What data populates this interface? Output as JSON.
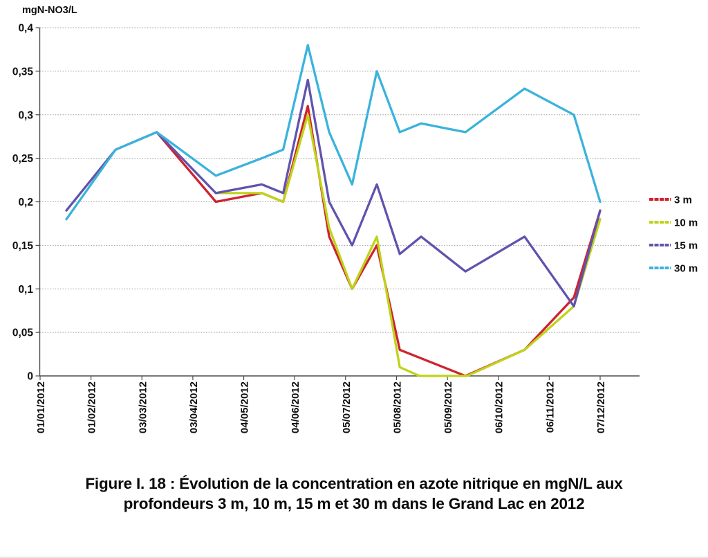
{
  "figure": {
    "caption_line1": "Figure I. 18 : Évolution de la concentration en azote nitrique en mgN/L aux",
    "caption_line2": "profondeurs 3 m, 10 m, 15 m et 30 m dans le Grand Lac en 2012"
  },
  "chart_data": {
    "type": "line",
    "title": "",
    "y_axis": {
      "label": "mgN-NO3/L",
      "min": 0,
      "max": 0.4,
      "tick_step": 0.05,
      "tick_values": [
        0,
        0.05,
        0.1,
        0.15,
        0.2,
        0.25,
        0.3,
        0.35,
        0.4
      ],
      "tick_labels": [
        "0",
        "0,05",
        "0,1",
        "0,15",
        "0,2",
        "0,25",
        "0,3",
        "0,35",
        "0,4"
      ],
      "grid": true
    },
    "x_axis": {
      "unit": "date (2012), day-of-year scale",
      "domain_days": [
        1,
        366
      ],
      "tick_days": [
        1,
        32,
        63,
        94,
        125,
        156,
        187,
        218,
        249,
        280,
        311,
        342
      ],
      "tick_labels": [
        "01/01/2012",
        "01/02/2012",
        "03/03/2012",
        "03/04/2012",
        "04/05/2012",
        "04/06/2012",
        "05/07/2012",
        "05/08/2012",
        "05/09/2012",
        "06/10/2012",
        "06/11/2012",
        "07/12/2012"
      ]
    },
    "legend": {
      "position": "right",
      "entries": [
        {
          "label": "3 m",
          "color": "#cf2230"
        },
        {
          "label": "10 m",
          "color": "#bfd318"
        },
        {
          "label": "15 m",
          "color": "#6053ae"
        },
        {
          "label": "30 m",
          "color": "#3ab3dc"
        }
      ]
    },
    "series": [
      {
        "name": "3 m",
        "color": "#cf2230",
        "points": [
          [
            72,
            0.28
          ],
          [
            108,
            0.2
          ],
          [
            136,
            0.21
          ],
          [
            149,
            0.2
          ],
          [
            164,
            0.31
          ],
          [
            177,
            0.16
          ],
          [
            191,
            0.1
          ],
          [
            206,
            0.15
          ],
          [
            220,
            0.03
          ],
          [
            260,
            0.0
          ],
          [
            296,
            0.03
          ],
          [
            326,
            0.09
          ],
          [
            342,
            0.19
          ]
        ]
      },
      {
        "name": "10 m",
        "color": "#bfd318",
        "points": [
          [
            108,
            0.21
          ],
          [
            136,
            0.21
          ],
          [
            149,
            0.2
          ],
          [
            164,
            0.3
          ],
          [
            177,
            0.17
          ],
          [
            191,
            0.1
          ],
          [
            206,
            0.16
          ],
          [
            220,
            0.01
          ],
          [
            232,
            0.0
          ],
          [
            261,
            0.0
          ],
          [
            296,
            0.03
          ],
          [
            326,
            0.08
          ],
          [
            342,
            0.18
          ]
        ]
      },
      {
        "name": "15 m",
        "color": "#6053ae",
        "points": [
          [
            17,
            0.19
          ],
          [
            47,
            0.26
          ],
          [
            72,
            0.28
          ],
          [
            108,
            0.21
          ],
          [
            136,
            0.22
          ],
          [
            149,
            0.21
          ],
          [
            164,
            0.34
          ],
          [
            177,
            0.2
          ],
          [
            191,
            0.15
          ],
          [
            206,
            0.22
          ],
          [
            220,
            0.14
          ],
          [
            233,
            0.16
          ],
          [
            260,
            0.12
          ],
          [
            296,
            0.16
          ],
          [
            326,
            0.08
          ],
          [
            342,
            0.19
          ]
        ]
      },
      {
        "name": "30 m",
        "color": "#3ab3dc",
        "points": [
          [
            17,
            0.18
          ],
          [
            47,
            0.26
          ],
          [
            72,
            0.28
          ],
          [
            108,
            0.23
          ],
          [
            122,
            0.24
          ],
          [
            136,
            0.25
          ],
          [
            149,
            0.26
          ],
          [
            164,
            0.38
          ],
          [
            177,
            0.28
          ],
          [
            191,
            0.22
          ],
          [
            206,
            0.35
          ],
          [
            220,
            0.28
          ],
          [
            233,
            0.29
          ],
          [
            260,
            0.28
          ],
          [
            296,
            0.33
          ],
          [
            326,
            0.3
          ],
          [
            342,
            0.2
          ]
        ]
      }
    ]
  }
}
